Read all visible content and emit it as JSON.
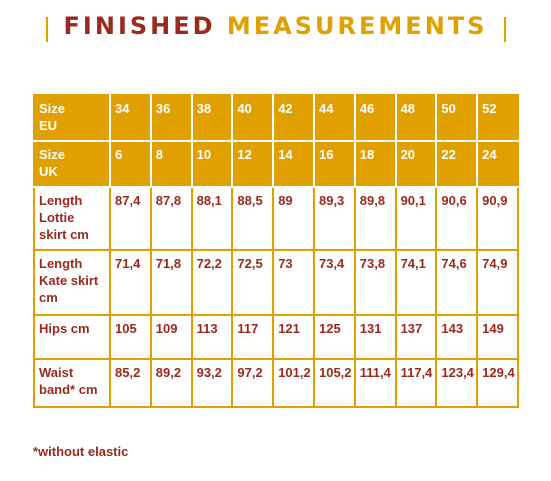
{
  "header": {
    "title_part1": "FINISHED",
    "title_part2": "MEASUREMENTS"
  },
  "table": {
    "rows": [
      [
        "Size\nEU",
        "34",
        "36",
        "38",
        "40",
        "42",
        "44",
        "46",
        "48",
        "50",
        "52"
      ],
      [
        "Size\nUK",
        "6",
        "8",
        "10",
        "12",
        "14",
        "16",
        "18",
        "20",
        "22",
        "24"
      ],
      [
        "Length\nLottie\nskirt cm",
        "87,4",
        "87,8",
        "88,1",
        "88,5",
        "89",
        "89,3",
        "89,8",
        "90,1",
        "90,6",
        "90,9"
      ],
      [
        "Length\nKate skirt\ncm",
        "71,4",
        "71,8",
        "72,2",
        "72,5",
        "73",
        "73,4",
        "73,8",
        "74,1",
        "74,6",
        "74,9"
      ],
      [
        "Hips cm",
        "105",
        "109",
        "113",
        "117",
        "121",
        "125",
        "131",
        "137",
        "143",
        "149"
      ],
      [
        "Waist\nband* cm",
        "85,2",
        "89,2",
        "93,2",
        "97,2",
        "101,2",
        "105,2",
        "111,4",
        "117,4",
        "123,4",
        "129,4"
      ]
    ]
  },
  "footnote": "*without elastic"
}
